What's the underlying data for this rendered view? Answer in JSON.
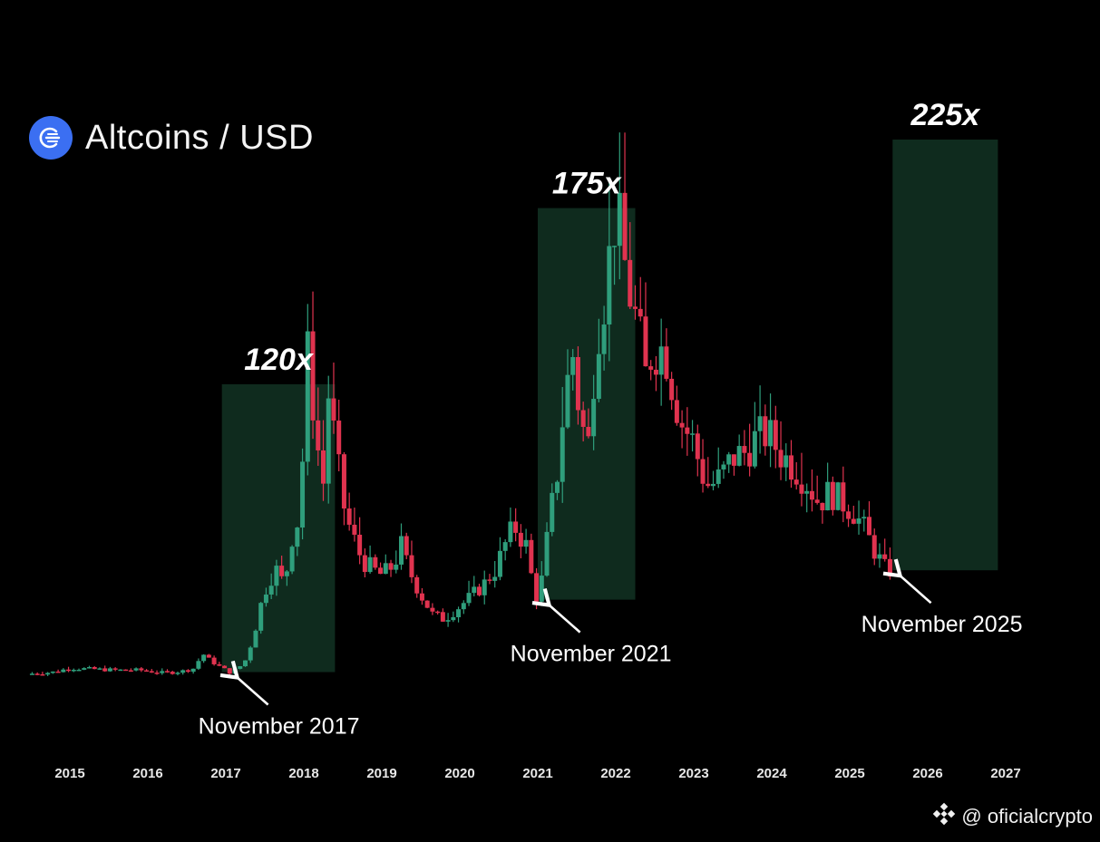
{
  "header": {
    "title": "Altcoins / USD",
    "logo_icon": "altcoin-logo-icon",
    "logo_color": "#3b6ff2"
  },
  "watermark": {
    "text": "@ oficialcrypto",
    "icon": "binance-logo-icon"
  },
  "colors": {
    "up": "#2f9e7c",
    "down": "#e0334f",
    "zone": "#0f2b1e",
    "arrow": "#ffffff"
  },
  "chart_data": {
    "type": "candlestick",
    "x_ticks": [
      "2015",
      "2016",
      "2017",
      "2018",
      "2019",
      "2020",
      "2021",
      "2022",
      "2023",
      "2024",
      "2025",
      "2026",
      "2027"
    ],
    "xlim": [
      2014.5,
      2027.5
    ],
    "y_scale": "relative",
    "grid": false,
    "close_path": [
      [
        2014.45,
        4
      ],
      [
        2014.8,
        6
      ],
      [
        2015.0,
        10
      ],
      [
        2015.3,
        9
      ],
      [
        2015.6,
        8
      ],
      [
        2015.9,
        8
      ],
      [
        2016.2,
        5
      ],
      [
        2016.45,
        7
      ],
      [
        2016.6,
        10
      ],
      [
        2016.7,
        25
      ],
      [
        2016.8,
        18
      ],
      [
        2016.95,
        10
      ],
      [
        2017.05,
        6
      ],
      [
        2017.15,
        9
      ],
      [
        2017.25,
        18
      ],
      [
        2017.35,
        40
      ],
      [
        2017.45,
        75
      ],
      [
        2017.55,
        100
      ],
      [
        2017.65,
        110
      ],
      [
        2017.75,
        95
      ],
      [
        2017.85,
        145
      ],
      [
        2017.92,
        160
      ],
      [
        2018.0,
        240
      ],
      [
        2018.05,
        330
      ],
      [
        2018.12,
        280
      ],
      [
        2018.2,
        220
      ],
      [
        2018.25,
        200
      ],
      [
        2018.3,
        300
      ],
      [
        2018.4,
        240
      ],
      [
        2018.5,
        180
      ],
      [
        2018.6,
        150
      ],
      [
        2018.75,
        120
      ],
      [
        2018.9,
        110
      ],
      [
        2019.0,
        105
      ],
      [
        2019.15,
        115
      ],
      [
        2019.25,
        135
      ],
      [
        2019.35,
        110
      ],
      [
        2019.5,
        85
      ],
      [
        2019.65,
        65
      ],
      [
        2019.8,
        60
      ],
      [
        2019.95,
        70
      ],
      [
        2020.1,
        80
      ],
      [
        2020.3,
        95
      ],
      [
        2020.45,
        110
      ],
      [
        2020.6,
        140
      ],
      [
        2020.7,
        155
      ],
      [
        2020.85,
        135
      ],
      [
        2020.95,
        90
      ],
      [
        2021.0,
        80
      ],
      [
        2021.05,
        100
      ],
      [
        2021.15,
        160
      ],
      [
        2021.25,
        210
      ],
      [
        2021.35,
        290
      ],
      [
        2021.45,
        330
      ],
      [
        2021.55,
        260
      ],
      [
        2021.65,
        240
      ],
      [
        2021.75,
        350
      ],
      [
        2021.85,
        390
      ],
      [
        2021.92,
        430
      ],
      [
        2022.0,
        480
      ],
      [
        2022.08,
        440
      ],
      [
        2022.15,
        405
      ],
      [
        2022.3,
        350
      ],
      [
        2022.4,
        300
      ],
      [
        2022.45,
        330
      ],
      [
        2022.55,
        340
      ],
      [
        2022.65,
        330
      ],
      [
        2022.75,
        290
      ],
      [
        2022.85,
        260
      ],
      [
        2023.0,
        240
      ],
      [
        2023.1,
        210
      ],
      [
        2023.2,
        195
      ],
      [
        2023.35,
        205
      ],
      [
        2023.5,
        225
      ],
      [
        2023.65,
        230
      ],
      [
        2023.8,
        245
      ],
      [
        2023.95,
        250
      ],
      [
        2024.1,
        230
      ],
      [
        2024.3,
        215
      ],
      [
        2024.45,
        200
      ],
      [
        2024.6,
        180
      ],
      [
        2024.75,
        190
      ],
      [
        2024.9,
        180
      ],
      [
        2025.05,
        170
      ],
      [
        2025.2,
        150
      ],
      [
        2025.35,
        125
      ],
      [
        2025.45,
        112
      ],
      [
        2025.52,
        110
      ]
    ],
    "highlight_zones": [
      {
        "label": "120x",
        "start": 2016.95,
        "end": 2018.4,
        "bottom_price": 6,
        "top_price": 300
      },
      {
        "label": "175x",
        "start": 2021.0,
        "end": 2022.25,
        "bottom_price": 80,
        "top_price": 480
      },
      {
        "label": "225x",
        "start": 2025.55,
        "end": 2026.9,
        "bottom_price": 110,
        "top_price": 550
      }
    ],
    "annotations": [
      {
        "text": "November 2017",
        "date": 2017.1,
        "price": 6
      },
      {
        "text": "November 2021",
        "date": 2021.1,
        "price": 80
      },
      {
        "text": "November 2025",
        "date": 2025.6,
        "price": 110
      }
    ]
  }
}
